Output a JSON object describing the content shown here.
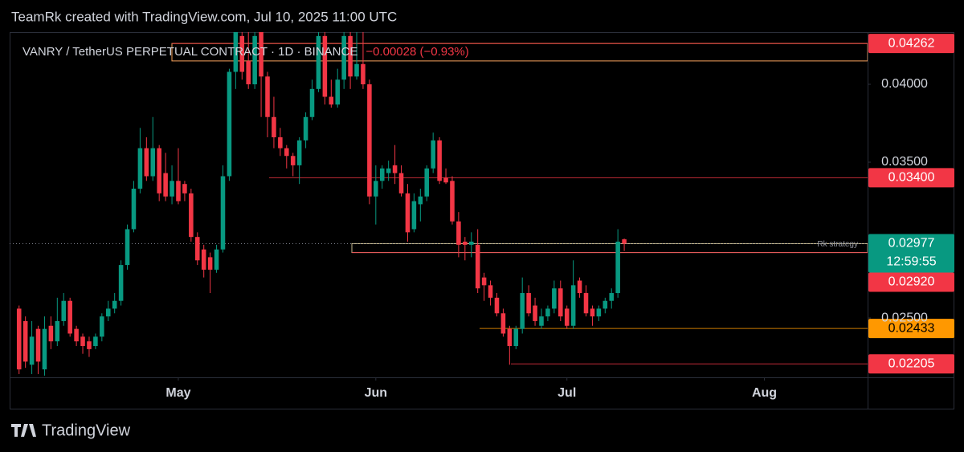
{
  "header": "TeamRk created with TradingView.com, Jul 10, 2025 11:00 UTC",
  "footer": "TradingView",
  "chart_data": {
    "type": "candlestick",
    "symbol": "VANRY / TetherUS PERPETUAL CONTRACT · 1D · BINANCE",
    "change": "−0.00028 (−0.93%)",
    "up_color": "#089981",
    "down_color": "#f23645",
    "open": [
      0.0256,
      0.0248,
      0.022,
      0.0243,
      0.0217,
      0.0245,
      0.0235,
      0.0248,
      0.0261,
      0.0243,
      0.0238,
      0.0235,
      0.0232,
      0.0238,
      0.0251,
      0.0256,
      0.0261,
      0.0284,
      0.0307,
      0.0333,
      0.0359,
      0.0341,
      0.0359,
      0.0343,
      0.0328,
      0.0338,
      0.0336,
      0.033,
      0.0302,
      0.0294,
      0.0289,
      0.0281,
      0.0294,
      0.0341,
      0.0408,
      0.0431,
      0.0415,
      0.04,
      0.0434,
      0.0405,
      0.0379,
      0.0366,
      0.0359,
      0.0354,
      0.0348,
      0.0364,
      0.0379,
      0.0397,
      0.0431,
      0.0392,
      0.0387,
      0.0403,
      0.0431,
      0.0405,
      0.0413,
      0.04,
      0.0328,
      0.0338,
      0.0343,
      0.0348,
      0.0343,
      0.033,
      0.0307,
      0.0323,
      0.0328,
      0.0346,
      0.0364,
      0.034,
      0.0338,
      0.0312,
      0.0299,
      0.0297,
      0.0297,
      0.0276,
      0.0271,
      0.0263,
      0.0253,
      0.0243,
      0.0232,
      0.0243,
      0.0266,
      0.0258,
      0.0245,
      0.0251,
      0.0256,
      0.0269,
      0.0256,
      0.0245,
      0.0274,
      0.0266,
      0.0256,
      0.0251,
      0.0256,
      0.0261,
      0.0266,
      0.03005
    ],
    "high": [
      0.0258,
      0.0251,
      0.0248,
      0.0245,
      0.0251,
      0.0251,
      0.0263,
      0.0266,
      0.0263,
      0.0245,
      0.024,
      0.0238,
      0.024,
      0.0253,
      0.0261,
      0.0266,
      0.0287,
      0.031,
      0.0338,
      0.0372,
      0.0366,
      0.0379,
      0.0361,
      0.0356,
      0.0348,
      0.0359,
      0.0338,
      0.0333,
      0.0305,
      0.0297,
      0.0292,
      0.0297,
      0.0348,
      0.041,
      0.044,
      0.044,
      0.044,
      0.044,
      0.044,
      0.0408,
      0.0392,
      0.0372,
      0.0361,
      0.0356,
      0.0366,
      0.0382,
      0.0403,
      0.044,
      0.044,
      0.0403,
      0.041,
      0.044,
      0.044,
      0.044,
      0.044,
      0.0403,
      0.0348,
      0.0348,
      0.0351,
      0.0361,
      0.0348,
      0.0336,
      0.033,
      0.0333,
      0.0348,
      0.0369,
      0.0366,
      0.0346,
      0.0341,
      0.0318,
      0.0302,
      0.0305,
      0.0307,
      0.0279,
      0.0274,
      0.0266,
      0.0256,
      0.0245,
      0.0245,
      0.0276,
      0.0271,
      0.0263,
      0.0256,
      0.0258,
      0.0274,
      0.0274,
      0.0258,
      0.0287,
      0.0276,
      0.0271,
      0.0258,
      0.0258,
      0.0263,
      0.0269,
      0.0307,
      0.0301
    ],
    "low": [
      0.0214,
      0.0218,
      0.0214,
      0.0214,
      0.0213,
      0.023,
      0.0232,
      0.0245,
      0.0238,
      0.0232,
      0.0227,
      0.0225,
      0.023,
      0.0235,
      0.0248,
      0.0253,
      0.0258,
      0.0281,
      0.0305,
      0.033,
      0.0338,
      0.0338,
      0.0325,
      0.0325,
      0.0323,
      0.0323,
      0.0325,
      0.0299,
      0.0284,
      0.0276,
      0.0266,
      0.0279,
      0.0292,
      0.0338,
      0.0397,
      0.0403,
      0.0397,
      0.0397,
      0.0379,
      0.0366,
      0.0359,
      0.0354,
      0.0346,
      0.0341,
      0.0336,
      0.0359,
      0.0377,
      0.0395,
      0.0387,
      0.0385,
      0.0385,
      0.0397,
      0.0397,
      0.0403,
      0.0397,
      0.0323,
      0.031,
      0.0333,
      0.0338,
      0.0336,
      0.0328,
      0.0299,
      0.0305,
      0.0312,
      0.0325,
      0.0343,
      0.0336,
      0.0336,
      0.031,
      0.0289,
      0.0287,
      0.0289,
      0.0266,
      0.0261,
      0.0258,
      0.0251,
      0.0238,
      0.022,
      0.023,
      0.024,
      0.0251,
      0.0245,
      0.0243,
      0.0248,
      0.0253,
      0.0248,
      0.0243,
      0.0243,
      0.0263,
      0.0251,
      0.0245,
      0.0248,
      0.0253,
      0.0256,
      0.0263,
      0.0293
    ],
    "close": [
      0.0217,
      0.0222,
      0.0238,
      0.0222,
      0.0243,
      0.0235,
      0.0248,
      0.0261,
      0.024,
      0.0235,
      0.0232,
      0.023,
      0.0238,
      0.0251,
      0.0256,
      0.0261,
      0.0284,
      0.0307,
      0.0333,
      0.0359,
      0.0341,
      0.0359,
      0.033,
      0.0328,
      0.0338,
      0.0325,
      0.033,
      0.0302,
      0.0287,
      0.0281,
      0.0281,
      0.0294,
      0.0341,
      0.0408,
      0.0434,
      0.0408,
      0.04,
      0.0431,
      0.0405,
      0.0379,
      0.0366,
      0.0359,
      0.0354,
      0.0348,
      0.0364,
      0.0379,
      0.0397,
      0.0431,
      0.0392,
      0.0387,
      0.0403,
      0.0431,
      0.0405,
      0.0413,
      0.04,
      0.0328,
      0.0338,
      0.0346,
      0.0346,
      0.0343,
      0.033,
      0.0305,
      0.0325,
      0.0328,
      0.0346,
      0.0364,
      0.0338,
      0.0337,
      0.0312,
      0.0297,
      0.0297,
      0.0299,
      0.0269,
      0.0271,
      0.0263,
      0.0253,
      0.024,
      0.0232,
      0.0243,
      0.0266,
      0.0253,
      0.0248,
      0.0251,
      0.0256,
      0.0269,
      0.0251,
      0.0245,
      0.0271,
      0.0266,
      0.0253,
      0.0251,
      0.0256,
      0.0261,
      0.0266,
      0.0299,
      0.02977
    ],
    "xlim": [
      -1.48,
      133.2
    ],
    "xticks": [
      {
        "value": 25,
        "label": "May"
      },
      {
        "value": 56,
        "label": "Jun"
      },
      {
        "value": 86,
        "label": "Jul"
      },
      {
        "value": 117,
        "label": "Aug"
      }
    ],
    "ylim": [
      0.02119,
      0.04335
    ],
    "yticks": [
      {
        "value": 0.04,
        "label": "0.04000"
      },
      {
        "value": 0.035,
        "label": "0.03500"
      },
      {
        "value": 0.025,
        "label": "0.02500"
      }
    ],
    "last_price": 0.02977,
    "countdown": "12:59:55",
    "zones": [
      {
        "top": 0.04262,
        "bottom": 0.0415,
        "color": "#f7a35c"
      },
      {
        "top": 0.02977,
        "bottom": 0.0292,
        "color": "#c9bc92",
        "label": "Rk strategy"
      }
    ],
    "levels": [
      {
        "value": 0.04262,
        "label": "0.04262",
        "color": "#f23645"
      },
      {
        "value": 0.034,
        "label": "0.03400",
        "color": "#f23645"
      },
      {
        "value": 0.0292,
        "label": "0.02920",
        "color": "#f23645"
      },
      {
        "value": 0.02433,
        "label": "0.02433",
        "color": "#ff9800"
      },
      {
        "value": 0.02205,
        "label": "0.02205",
        "color": "#f23645"
      }
    ]
  }
}
